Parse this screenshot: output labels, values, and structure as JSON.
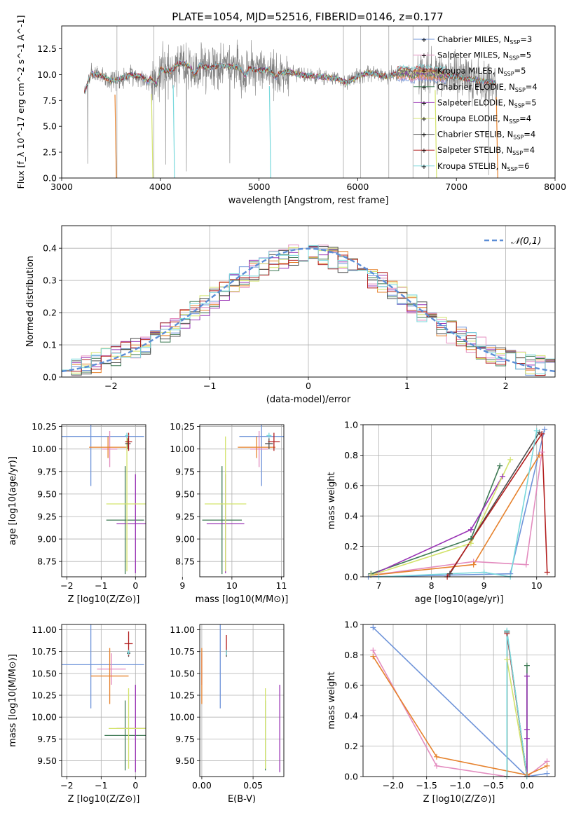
{
  "figure": {
    "title": "PLATE=1054, MJD=52516, FIBERID=0146, z=0.177"
  },
  "models": [
    {
      "name": "Chabrier MILES",
      "nssp": "3",
      "color": "#6f94d9"
    },
    {
      "name": "Salpeter MILES",
      "nssp": "5",
      "color": "#e38cbf"
    },
    {
      "name": "Kroupa MILES",
      "nssp": "5",
      "color": "#e6822d"
    },
    {
      "name": "Chabrier ELODIE",
      "nssp": "4",
      "color": "#3f7a55"
    },
    {
      "name": "Salpeter ELODIE",
      "nssp": "5",
      "color": "#9932b5"
    },
    {
      "name": "Kroupa ELODIE",
      "nssp": "4",
      "color": "#d3e36c"
    },
    {
      "name": "Chabrier STELIB",
      "nssp": "4",
      "color": "#4d4d4d"
    },
    {
      "name": "Salpeter STELIB",
      "nssp": "4",
      "color": "#b21e1e"
    },
    {
      "name": "Kroupa STELIB",
      "nssp": "6",
      "color": "#78d8dc"
    }
  ],
  "chart_data": [
    {
      "id": "spectrum",
      "type": "line",
      "xlabel": "wavelength [Angstrom, rest frame]",
      "ylabel": "Flux [f_λ 10^-17 erg cm^-2 s^-1 A^-1]",
      "xlim": [
        3000,
        8000
      ],
      "ylim": [
        0,
        14.7
      ],
      "xticks": [
        "3000",
        "4000",
        "5000",
        "6000",
        "7000",
        "8000"
      ],
      "yticks": [
        "0.0",
        "2.5",
        "5.0",
        "7.5",
        "10.0",
        "12.5"
      ],
      "data_color": "#808080",
      "model_color": "#78d8dc",
      "model_x": [
        3230,
        3300,
        3400,
        3500,
        3600,
        3700,
        3800,
        3880,
        3900,
        3960,
        4000,
        4100,
        4200,
        4300,
        4340,
        4400,
        4500,
        4600,
        4700,
        4800,
        4860,
        4900,
        5000,
        5100,
        5170,
        5200,
        5300,
        5400,
        5500,
        5600,
        5700,
        5800,
        5890,
        6000,
        6100,
        6200,
        6300,
        6400,
        6500,
        6563,
        6600,
        6700,
        6800,
        6900,
        7000,
        7100,
        7200,
        7300,
        7400
      ],
      "model_y": [
        8.3,
        10.1,
        9.9,
        9.4,
        9.6,
        10.0,
        9.8,
        9.3,
        9.7,
        8.9,
        10.5,
        10.3,
        11.2,
        10.8,
        9.9,
        10.9,
        10.6,
        10.9,
        10.8,
        10.7,
        9.9,
        10.6,
        10.4,
        10.5,
        9.7,
        10.1,
        10.3,
        10.0,
        9.9,
        9.8,
        9.7,
        9.6,
        9.2,
        9.8,
        10.2,
        10.0,
        9.8,
        10.1,
        10.2,
        9.9,
        10.2,
        10.1,
        10.0,
        9.9,
        9.8,
        9.6,
        9.5,
        9.3,
        9.2
      ],
      "data_x_range": [
        3230,
        7410
      ],
      "data_noise_sd": [
        1.6,
        0.5
      ],
      "drops": [
        {
          "x": 3540,
          "y": 0.0,
          "color": "#e6822d"
        },
        {
          "x": 3910,
          "y": 0.0,
          "color": "#d3e36c"
        },
        {
          "x": 4130,
          "y": 0.0,
          "color": "#78d8dc"
        },
        {
          "x": 5105,
          "y": 0.0,
          "color": "#78d8dc"
        },
        {
          "x": 6785,
          "y": 0.0,
          "color": "#d3e36c"
        },
        {
          "x": 7405,
          "y": 0.0,
          "color": "#e6822d"
        }
      ],
      "legend_position": "right"
    },
    {
      "id": "residual-hist",
      "type": "line",
      "xlabel": "(data-model)/error",
      "ylabel": "Normed distribution",
      "xlim": [
        -2.5,
        2.5
      ],
      "ylim": [
        0,
        0.47
      ],
      "xticks": [
        "−2",
        "−1",
        "0",
        "1",
        "2"
      ],
      "yticks": [
        "0.0",
        "0.1",
        "0.2",
        "0.3",
        "0.4"
      ],
      "bin_start": -2.5,
      "bin_width": 0.1,
      "reference": {
        "label": "𝒩(0,1)",
        "mu": 0,
        "sigma": 1,
        "color": "#5b8dd6"
      },
      "legend_position": "top-right"
    },
    {
      "id": "age-vs-z",
      "type": "scatter",
      "xlabel": "Z [log10(Z/Z⊙)]",
      "ylabel": "age  [log10(age/yr)]",
      "xlim": [
        -2.15,
        0.3
      ],
      "ylim": [
        8.58,
        10.27
      ],
      "xticks": [
        "−2",
        "−1",
        "0"
      ],
      "yticks": [
        "8.75",
        "9.00",
        "9.25",
        "9.50",
        "9.75",
        "10.00",
        "10.25"
      ],
      "points": [
        {
          "m": 0,
          "x": -1.3,
          "y": 10.14,
          "ex": 1.55,
          "ey": 0.55
        },
        {
          "m": 1,
          "x": -0.75,
          "y": 10.0,
          "ex": 0.22,
          "ey": 0.2
        },
        {
          "m": 2,
          "x": -0.8,
          "y": 10.02,
          "ex": 0.55,
          "ey": 0.12
        },
        {
          "m": 3,
          "x": -0.3,
          "y": 9.21,
          "ex": 0.55,
          "ey": 0.6
        },
        {
          "m": 4,
          "x": 0.0,
          "y": 9.17,
          "ex": 0.55,
          "ey": 0.55
        },
        {
          "m": 5,
          "x": -0.25,
          "y": 9.39,
          "ex": 0.6,
          "ey": 0.75
        },
        {
          "m": 6,
          "x": -0.22,
          "y": 10.06,
          "ex": 0.08,
          "ey": 0.06
        },
        {
          "m": 7,
          "x": -0.2,
          "y": 10.08,
          "ex": 0.1,
          "ey": 0.1
        },
        {
          "m": 8,
          "x": -0.25,
          "y": 10.15,
          "ex": 0.05,
          "ey": 0.03
        }
      ]
    },
    {
      "id": "age-vs-mass",
      "type": "scatter",
      "xlabel": "mass [log10(M/M⊙)]",
      "ylabel": "",
      "xlim": [
        9.35,
        11.05
      ],
      "ylim": [
        8.58,
        10.27
      ],
      "xticks": [
        "9",
        "10",
        "11"
      ],
      "yticks": [
        "8.75",
        "9.00",
        "9.25",
        "9.50",
        "9.75",
        "10.00",
        "10.25"
      ],
      "points": [
        {
          "m": 0,
          "x": 10.6,
          "y": 10.14,
          "ex": 0.45,
          "ey": 0.55
        },
        {
          "m": 1,
          "x": 10.55,
          "y": 10.0,
          "ex": 0.18,
          "ey": 0.2
        },
        {
          "m": 2,
          "x": 10.5,
          "y": 10.02,
          "ex": 0.38,
          "ey": 0.12
        },
        {
          "m": 3,
          "x": 9.8,
          "y": 9.21,
          "ex": 0.4,
          "ey": 0.6
        },
        {
          "m": 4,
          "x": 9.87,
          "y": 9.17,
          "ex": 0.38,
          "ey": 0.55
        },
        {
          "m": 5,
          "x": 9.87,
          "y": 9.39,
          "ex": 0.42,
          "ey": 0.75
        },
        {
          "m": 6,
          "x": 10.75,
          "y": 10.06,
          "ex": 0.08,
          "ey": 0.06
        },
        {
          "m": 7,
          "x": 10.85,
          "y": 10.08,
          "ex": 0.12,
          "ey": 0.1
        },
        {
          "m": 8,
          "x": 10.75,
          "y": 10.15,
          "ex": 0.05,
          "ey": 0.03
        }
      ]
    },
    {
      "id": "mass-vs-z",
      "type": "scatter",
      "xlabel": "Z [log10(Z/Z⊙)]",
      "ylabel": "mass [log10(M/M⊙)]",
      "xlim": [
        -2.15,
        0.3
      ],
      "ylim": [
        9.32,
        11.06
      ],
      "xticks": [
        "−2",
        "−1",
        "0"
      ],
      "yticks": [
        "9.50",
        "9.75",
        "10.00",
        "10.25",
        "10.50",
        "10.75",
        "11.00"
      ],
      "points": [
        {
          "m": 0,
          "x": -1.3,
          "y": 10.6,
          "ex": 1.55,
          "ey": 0.5
        },
        {
          "m": 1,
          "x": -0.7,
          "y": 10.55,
          "ex": 0.42,
          "ey": 0.18
        },
        {
          "m": 2,
          "x": -0.75,
          "y": 10.47,
          "ex": 0.55,
          "ey": 0.32
        },
        {
          "m": 3,
          "x": -0.3,
          "y": 9.79,
          "ex": 0.6,
          "ey": 0.4
        },
        {
          "m": 4,
          "x": 0.0,
          "y": 9.87,
          "ex": 0.55,
          "ey": 0.5
        },
        {
          "m": 5,
          "x": -0.2,
          "y": 9.87,
          "ex": 0.58,
          "ey": 0.46
        },
        {
          "m": 6,
          "x": -0.2,
          "y": 10.73,
          "ex": 0.05,
          "ey": 0.04
        },
        {
          "m": 7,
          "x": -0.2,
          "y": 10.84,
          "ex": 0.12,
          "ey": 0.14
        },
        {
          "m": 8,
          "x": -0.2,
          "y": 10.74,
          "ex": 0.05,
          "ey": 0.03
        }
      ]
    },
    {
      "id": "mass-vs-ebv",
      "type": "scatter",
      "xlabel": "E(B-V)",
      "ylabel": "",
      "xlim": [
        -0.002,
        0.08
      ],
      "ylim": [
        9.32,
        11.06
      ],
      "xticks": [
        "0.00",
        "0.05"
      ],
      "yticks": [
        "9.50",
        "9.75",
        "10.00",
        "10.25",
        "10.50",
        "10.75",
        "11.00"
      ],
      "points": [
        {
          "m": 0,
          "x": 0.018,
          "y": 10.6,
          "ex": 0,
          "ey": 0.5
        },
        {
          "m": 1,
          "x": 0.0,
          "y": 10.55,
          "ex": 0,
          "ey": 0.18
        },
        {
          "m": 2,
          "x": 0.0,
          "y": 10.47,
          "ex": 0,
          "ey": 0.32
        },
        {
          "m": 3,
          "x": 0.062,
          "y": 9.79,
          "ex": 0,
          "ey": 0.4
        },
        {
          "m": 4,
          "x": 0.076,
          "y": 9.87,
          "ex": 0,
          "ey": 0.5
        },
        {
          "m": 5,
          "x": 0.062,
          "y": 9.87,
          "ex": 0,
          "ey": 0.46
        },
        {
          "m": 6,
          "x": 0.024,
          "y": 10.73,
          "ex": 0,
          "ey": 0.04
        },
        {
          "m": 7,
          "x": 0.024,
          "y": 10.84,
          "ex": 0,
          "ey": 0.1
        },
        {
          "m": 8,
          "x": 0.024,
          "y": 10.74,
          "ex": 0,
          "ey": 0.03
        }
      ]
    },
    {
      "id": "weight-vs-age",
      "type": "line",
      "xlabel": "age  [log10(age/yr)]",
      "ylabel": "mass weight",
      "xlim": [
        6.7,
        10.35
      ],
      "ylim": [
        0,
        1.0
      ],
      "xticks": [
        "7",
        "8",
        "9",
        "10"
      ],
      "yticks": [
        "0.0",
        "0.2",
        "0.4",
        "0.6",
        "0.8",
        "1.0"
      ],
      "series": [
        {
          "m": 0,
          "x": [
            6.8,
            9.5,
            10.15
          ],
          "y": [
            0.0,
            0.02,
            0.97
          ]
        },
        {
          "m": 1,
          "x": [
            6.85,
            8.8,
            9.8,
            10.1
          ],
          "y": [
            0.01,
            0.1,
            0.08,
            0.82
          ]
        },
        {
          "m": 2,
          "x": [
            6.85,
            8.8,
            10.05
          ],
          "y": [
            0.01,
            0.08,
            0.8
          ]
        },
        {
          "m": 3,
          "x": [
            6.85,
            8.75,
            9.3
          ],
          "y": [
            0.02,
            0.25,
            0.73
          ]
        },
        {
          "m": 4,
          "x": [
            6.85,
            8.75,
            9.35
          ],
          "y": [
            0.01,
            0.31,
            0.66
          ]
        },
        {
          "m": 5,
          "x": [
            6.85,
            8.75,
            9.5
          ],
          "y": [
            0.01,
            0.22,
            0.77
          ]
        },
        {
          "m": 6,
          "x": [
            8.35,
            10.05
          ],
          "y": [
            0.02,
            0.95
          ]
        },
        {
          "m": 7,
          "x": [
            8.3,
            10.1,
            10.2
          ],
          "y": [
            0.0,
            0.94,
            0.03
          ]
        },
        {
          "m": 8,
          "x": [
            7.0,
            9.0,
            9.5,
            10.0
          ],
          "y": [
            0.0,
            0.03,
            0.0,
            0.96
          ]
        }
      ]
    },
    {
      "id": "weight-vs-z",
      "type": "line",
      "xlabel": "Z [log10(Z/Z⊙)]",
      "ylabel": "mass weight",
      "xlim": [
        -2.45,
        0.42
      ],
      "ylim": [
        0,
        1.0
      ],
      "xticks": [
        "−2.0",
        "−1.5",
        "−1.0",
        "−0.5",
        "0.0"
      ],
      "yticks": [
        "0.0",
        "0.2",
        "0.4",
        "0.6",
        "0.8",
        "1.0"
      ],
      "series": [
        {
          "m": 0,
          "x": [
            -2.3,
            0.0,
            0.3
          ],
          "y": [
            0.98,
            0.0,
            0.02
          ]
        },
        {
          "m": 1,
          "x": [
            -2.3,
            -1.35,
            -0.3,
            0.0,
            0.3
          ],
          "y": [
            0.83,
            0.07,
            0.0,
            0.0,
            0.1
          ]
        },
        {
          "m": 2,
          "x": [
            -2.3,
            -1.35,
            0.0,
            0.3
          ],
          "y": [
            0.79,
            0.13,
            0.01,
            0.07
          ]
        },
        {
          "m": 3,
          "x": [
            -0.3,
            -0.3,
            0.0,
            0.0
          ],
          "y": [
            0.0,
            0.95,
            0.0,
            0.73
          ]
        },
        {
          "m": 4,
          "x": [
            0.0,
            0.0,
            0.0,
            0.0
          ],
          "y": [
            0.25,
            0.31,
            0.66,
            0.0
          ]
        },
        {
          "m": 5,
          "x": [
            -0.3,
            -0.3,
            0.0
          ],
          "y": [
            0.0,
            0.77,
            0.0
          ]
        },
        {
          "m": 6,
          "x": [
            -0.3,
            -0.3,
            0.0
          ],
          "y": [
            0.0,
            0.95,
            0.0
          ]
        },
        {
          "m": 7,
          "x": [
            -0.3,
            -0.3,
            0.0
          ],
          "y": [
            0.0,
            0.94,
            0.0
          ]
        },
        {
          "m": 8,
          "x": [
            -0.3,
            -0.3,
            0.0
          ],
          "y": [
            0.0,
            0.96,
            0.0
          ]
        }
      ]
    }
  ]
}
